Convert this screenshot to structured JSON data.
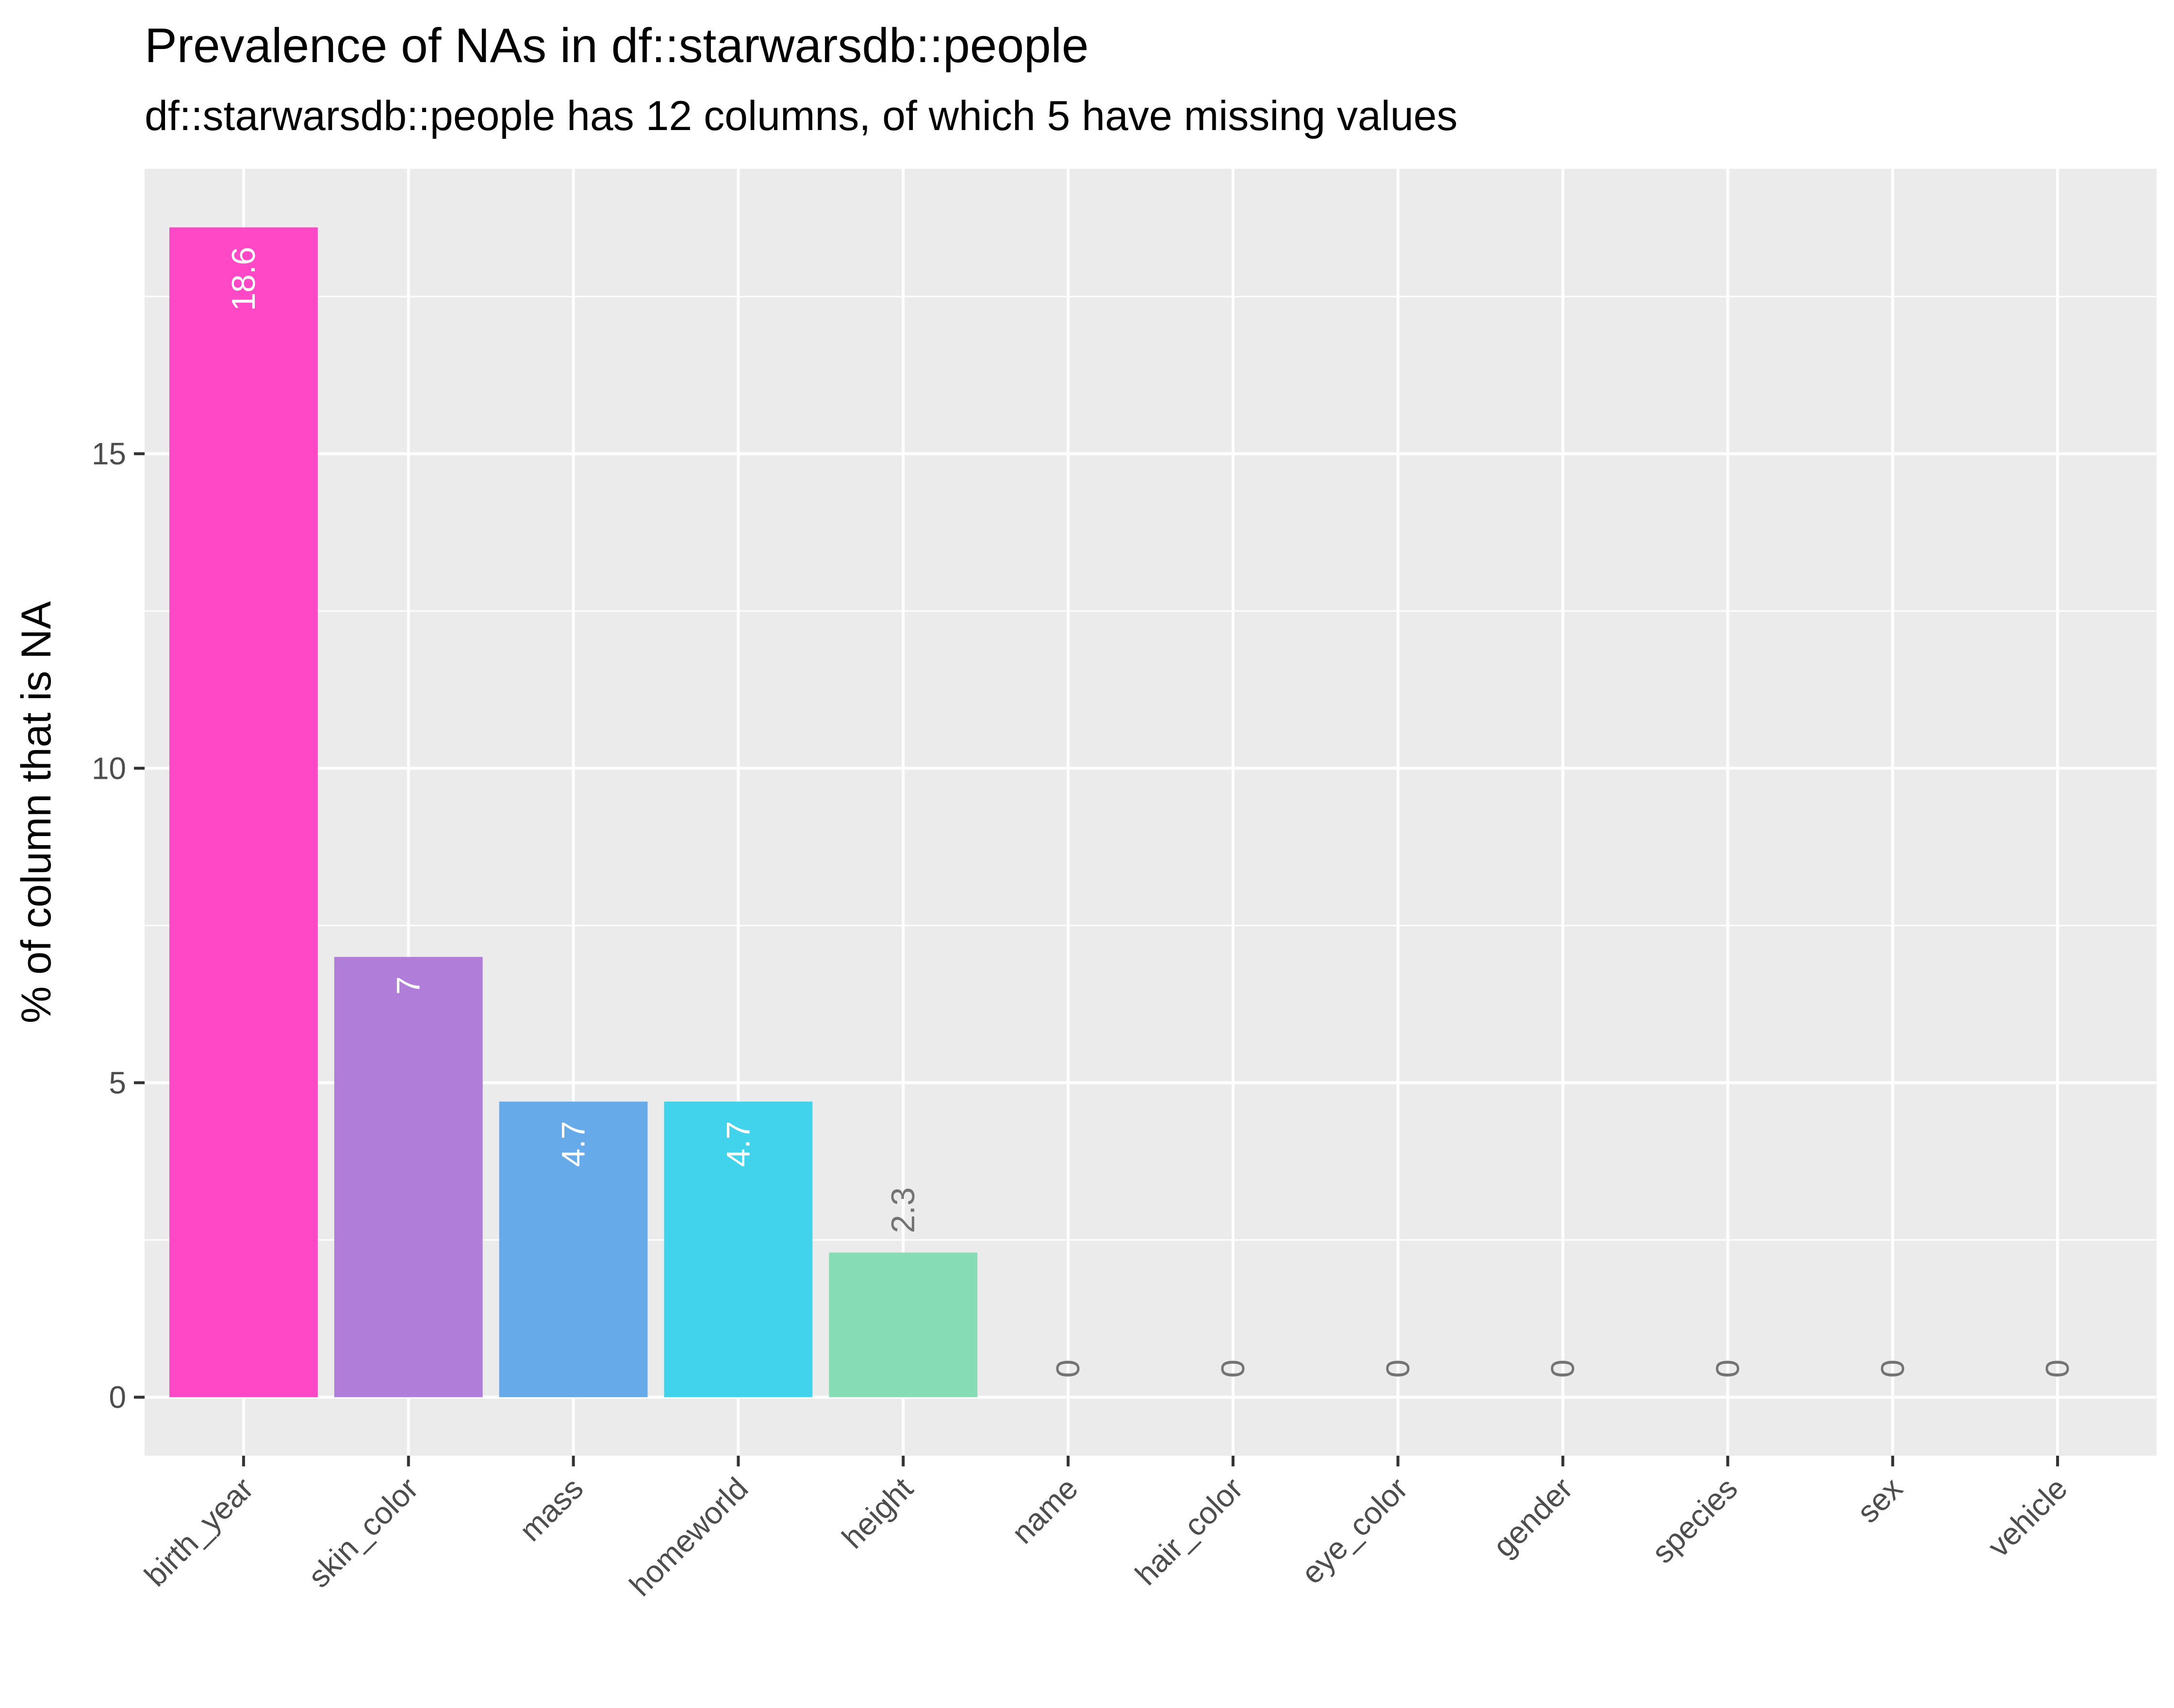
{
  "chart_data": {
    "type": "bar",
    "title": "Prevalence of NAs in df::starwarsdb::people",
    "subtitle": "df::starwarsdb::people has 12 columns, of which 5 have missing values",
    "xlabel": "",
    "ylabel": "% of column that is NA",
    "categories": [
      "birth_year",
      "skin_color",
      "mass",
      "homeworld",
      "height",
      "name",
      "hair_color",
      "eye_color",
      "gender",
      "species",
      "sex",
      "vehicle"
    ],
    "values": [
      18.6,
      7,
      4.7,
      4.7,
      2.3,
      0,
      0,
      0,
      0,
      0,
      0,
      0
    ],
    "data_labels": [
      "18.6",
      "7",
      "4.7",
      "4.7",
      "2.3",
      "0",
      "0",
      "0",
      "0",
      "0",
      "0",
      "0"
    ],
    "colors": [
      "#ff48c6",
      "#b07dd8",
      "#66aaea",
      "#40d3eb",
      "#86dcb5",
      "#5e5e5e",
      "#5e5e5e",
      "#5e5e5e",
      "#5e5e5e",
      "#5e5e5e",
      "#5e5e5e",
      "#5e5e5e"
    ],
    "ylim": [
      -0.93,
      19.53
    ],
    "yticks": [
      0,
      5,
      10,
      15
    ],
    "ytick_labels": [
      "0",
      "5",
      "10",
      "15"
    ],
    "grid": true,
    "legend": "none",
    "panel_background": "#ebebeb",
    "grid_color": "#ffffff"
  }
}
